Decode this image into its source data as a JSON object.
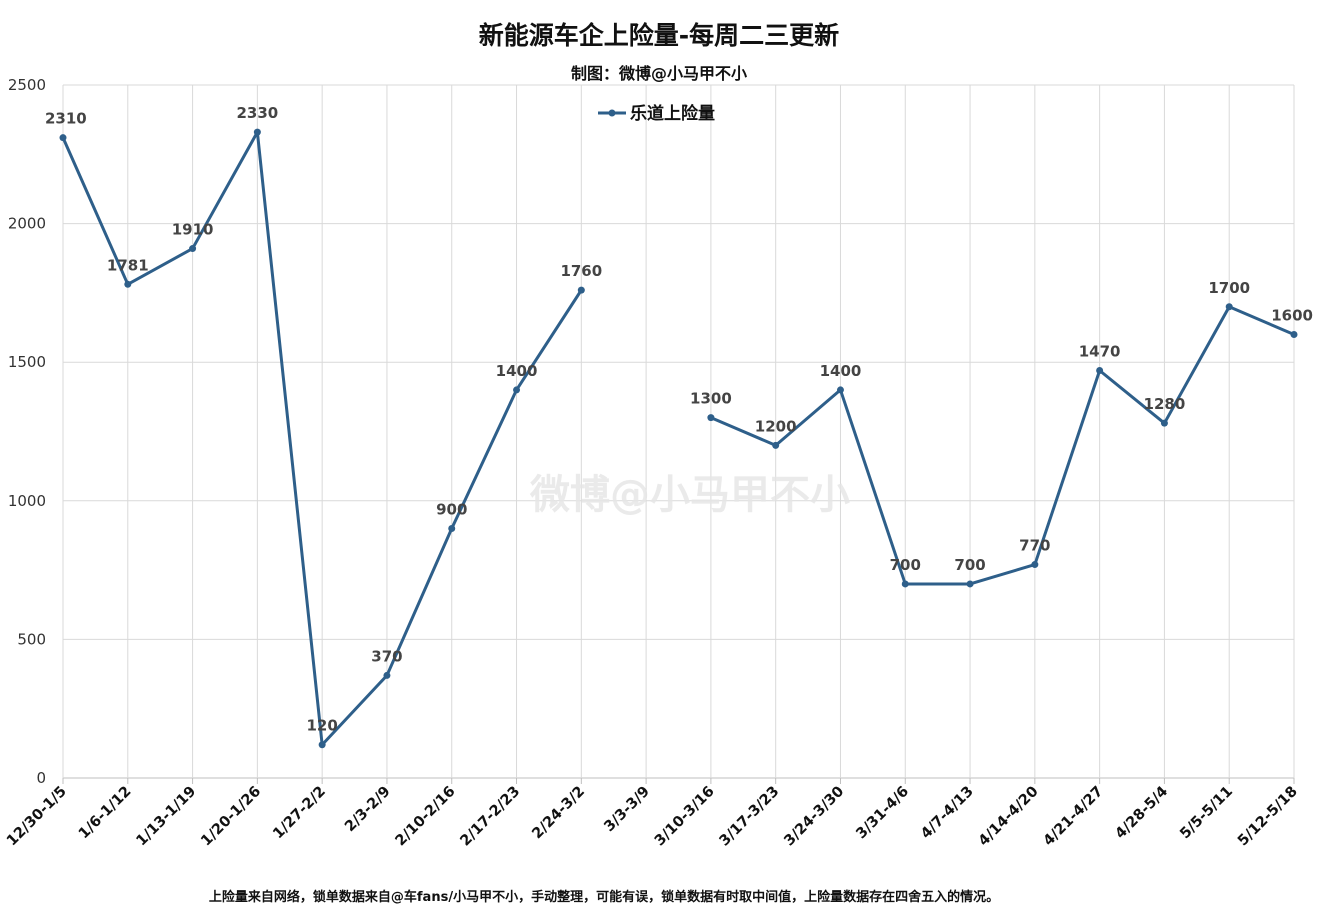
{
  "chart_data": {
    "type": "line",
    "title": "新能源车企上险量-每周二三更新",
    "subtitle": "制图：微博@小马甲不小",
    "categories": [
      "12/30-1/5",
      "1/6-1/12",
      "1/13-1/19",
      "1/20-1/26",
      "1/27-2/2",
      "2/3-2/9",
      "2/10-2/16",
      "2/17-2/23",
      "2/24-3/2",
      "3/3-3/9",
      "3/10-3/16",
      "3/17-3/23",
      "3/24-3/30",
      "3/31-4/6",
      "4/7-4/13",
      "4/14-4/20",
      "4/21-4/27",
      "4/28-5/4",
      "5/5-5/11",
      "5/12-5/18"
    ],
    "series": [
      {
        "name": "乐道上险量",
        "values": [
          2310,
          1781,
          1910,
          2330,
          120,
          370,
          900,
          1400,
          1760,
          null,
          1300,
          1200,
          1400,
          700,
          700,
          770,
          1470,
          1280,
          1700,
          1600
        ],
        "labels": [
          "2310",
          "1781",
          "1910",
          "2330",
          "120",
          "370",
          "900",
          "1400",
          "1760",
          "",
          "1300",
          "1200",
          "1400",
          "700",
          "700",
          "770",
          "1470",
          "1280",
          "1700",
          "1600"
        ],
        "color": "#2e5f8a"
      }
    ],
    "yticks": [
      0,
      500,
      1000,
      1500,
      2000,
      2500
    ],
    "ylim": [
      0,
      2500
    ],
    "grid": true,
    "legend_position": "top-center",
    "xlabel": "",
    "ylabel": ""
  },
  "watermark": "微博@小马甲不小",
  "footnote": "上险量来自网络，锁单数据来自@车fans/小马甲不小，手动整理，可能有误，锁单数据有时取中间值，上险量数据存在四舍五入的情况。"
}
